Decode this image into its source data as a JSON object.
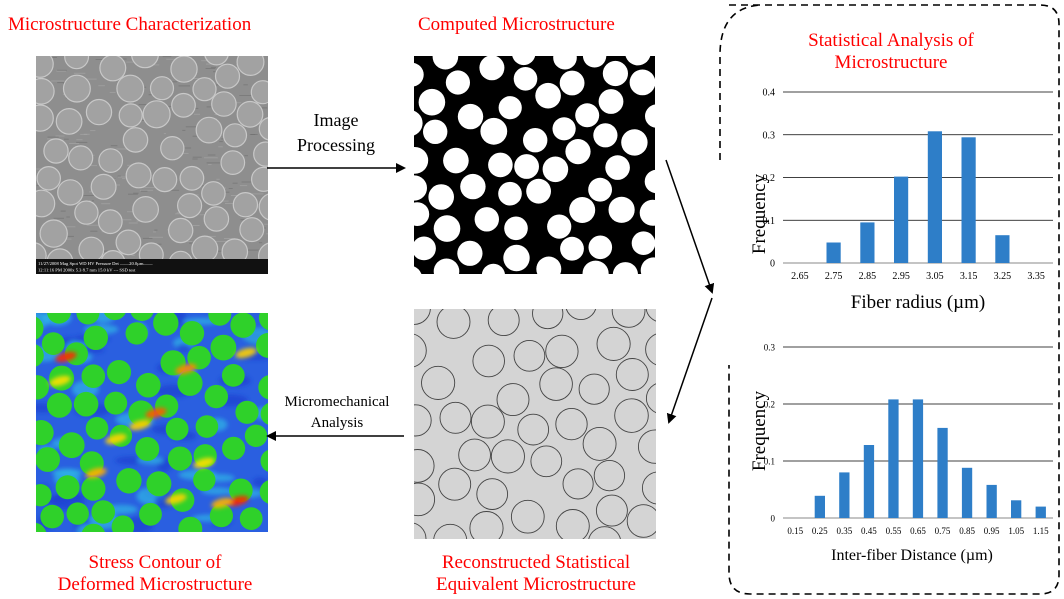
{
  "titles": {
    "characterization": "Microstructure Characterization",
    "computed": "Computed Microstructure",
    "statistical_line1": "Statistical Analysis of",
    "statistical_line2": "Microstructure",
    "stress_line1": "Stress Contour of",
    "stress_line2": "Deformed Microstructure",
    "reconstructed_line1": "Reconstructed Statistical",
    "reconstructed_line2": "Equivalent Microstructure"
  },
  "arrows": {
    "image_processing_line1": "Image",
    "image_processing_line2": "Processing",
    "micromech_line1": "Micromechanical",
    "micromech_line2": "Analysis"
  },
  "sem_info": {
    "row1": "11/27/2008   Mag   Spot   WD    HV   Pressure  Det  ——20.0µm——",
    "row2": "12:11:16 PM  2000x  5.3  8.7 mm  15.0 kV   ---    SSD          test"
  },
  "colors": {
    "title_red": "#ff0000",
    "bar_blue": "#2e7ec8",
    "sem_gray": "#8e8e8e",
    "recon_fill": "#d4d4d4",
    "stress_blue": "#2255dd",
    "stress_green": "#22cc22"
  },
  "chart_data": [
    {
      "type": "bar",
      "title": "",
      "xlabel": "Fiber radius (µm)",
      "ylabel": "Frequency",
      "categories": [
        "2.65",
        "2.75",
        "2.85",
        "2.95",
        "3.05",
        "3.15",
        "3.25",
        "3.35"
      ],
      "values": [
        0,
        0.048,
        0.095,
        0.202,
        0.308,
        0.294,
        0.065,
        0
      ],
      "ylim": [
        0,
        0.4
      ],
      "yticks": [
        "0",
        "0.1",
        "0.2",
        "0.3",
        "0.4"
      ],
      "grid": true
    },
    {
      "type": "bar",
      "title": "",
      "xlabel": "Inter-fiber Distance (µm)",
      "ylabel": "Frequency",
      "categories": [
        "0.15",
        "0.25",
        "0.35",
        "0.45",
        "0.55",
        "0.65",
        "0.75",
        "0.85",
        "0.95",
        "1.05",
        "1.15"
      ],
      "values": [
        0,
        0.039,
        0.08,
        0.128,
        0.208,
        0.208,
        0.158,
        0.088,
        0.058,
        0.031,
        0.02
      ],
      "ylim": [
        0,
        0.3
      ],
      "yticks": [
        "0",
        "0.1",
        "0.2",
        "0.3"
      ],
      "grid": true
    }
  ]
}
